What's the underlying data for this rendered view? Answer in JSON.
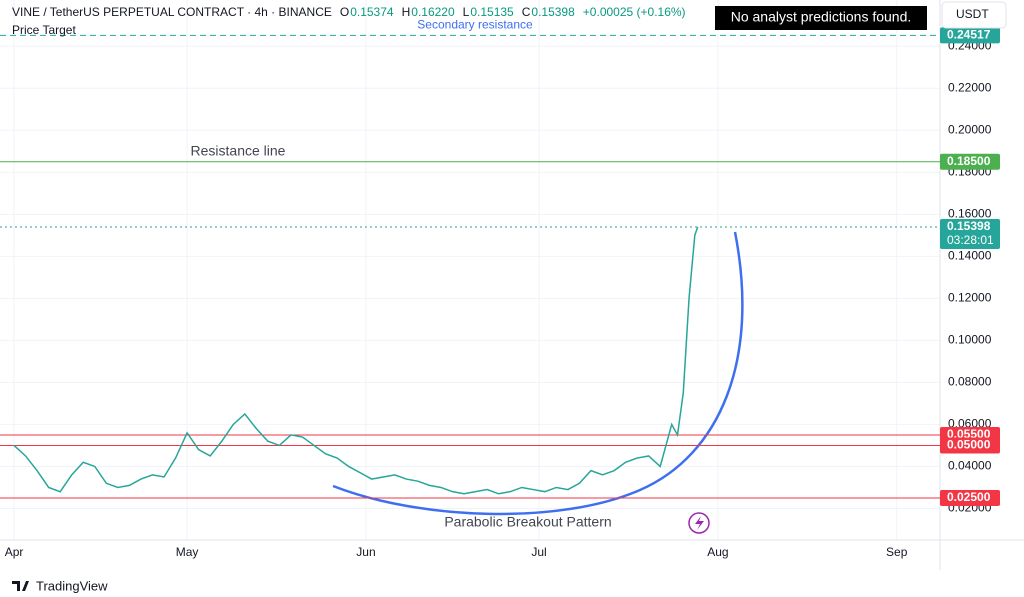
{
  "chart_data": {
    "type": "line",
    "header": {
      "symbol": "VINE / TetherUS PERPETUAL CONTRACT · 4h · BINANCE",
      "open": "0.15374",
      "high": "0.16220",
      "low": "0.15135",
      "close": "0.15398",
      "change": "+0.00025 (+0.16%)"
    },
    "price_target_label": "Price Target",
    "tooltip": "No analyst predictions found.",
    "currency": "USDT",
    "brand": "TradingView",
    "pattern_label": "Parabolic Breakout Pattern",
    "xlim": [
      -0.7,
      160.5
    ],
    "xticks": [
      {
        "value": 0,
        "label": "Apr"
      },
      {
        "value": 30,
        "label": "May"
      },
      {
        "value": 61,
        "label": "Jun"
      },
      {
        "value": 91,
        "label": "Jul"
      },
      {
        "value": 122,
        "label": "Aug"
      },
      {
        "value": 153,
        "label": "Sep"
      }
    ],
    "ylim": [
      0.005,
      0.262
    ],
    "yticks": [
      {
        "value": 0.02,
        "label": "0.02000"
      },
      {
        "value": 0.04,
        "label": "0.04000"
      },
      {
        "value": 0.06,
        "label": "0.06000"
      },
      {
        "value": 0.08,
        "label": "0.08000"
      },
      {
        "value": 0.1,
        "label": "0.10000"
      },
      {
        "value": 0.12,
        "label": "0.12000"
      },
      {
        "value": 0.14,
        "label": "0.14000"
      },
      {
        "value": 0.16,
        "label": "0.16000"
      },
      {
        "value": 0.18,
        "label": "0.18000"
      },
      {
        "value": 0.2,
        "label": "0.20000"
      },
      {
        "value": 0.22,
        "label": "0.22000"
      },
      {
        "value": 0.24,
        "label": "0.24000"
      }
    ],
    "grid": true,
    "series": [
      {
        "color": "#26a69a",
        "x": [
          0,
          2,
          4,
          6,
          8,
          10,
          12,
          14,
          16,
          18,
          20,
          22,
          24,
          26,
          28,
          30,
          32,
          34,
          36,
          38,
          40,
          42,
          44,
          46,
          48,
          50,
          52,
          54,
          56,
          58,
          60,
          62,
          64,
          66,
          68,
          70,
          72,
          74,
          76,
          78,
          80,
          82,
          84,
          86,
          88,
          90,
          92,
          94,
          96,
          98,
          100,
          102,
          104,
          106,
          108,
          110,
          112,
          114,
          115,
          116,
          117,
          118,
          118.5
        ],
        "values": [
          0.05,
          0.045,
          0.038,
          0.03,
          0.028,
          0.036,
          0.042,
          0.04,
          0.032,
          0.03,
          0.031,
          0.034,
          0.036,
          0.035,
          0.044,
          0.056,
          0.048,
          0.045,
          0.052,
          0.06,
          0.065,
          0.058,
          0.052,
          0.05,
          0.055,
          0.054,
          0.05,
          0.046,
          0.044,
          0.04,
          0.037,
          0.034,
          0.035,
          0.036,
          0.034,
          0.033,
          0.031,
          0.03,
          0.028,
          0.027,
          0.028,
          0.029,
          0.027,
          0.028,
          0.03,
          0.029,
          0.028,
          0.03,
          0.029,
          0.032,
          0.038,
          0.036,
          0.038,
          0.042,
          0.044,
          0.045,
          0.04,
          0.06,
          0.055,
          0.075,
          0.12,
          0.15,
          0.154
        ]
      }
    ],
    "levels": [
      {
        "name": "Secondary resistance",
        "value": 0.24517,
        "label": "0.24517",
        "color": "#26a69a",
        "style": "dashed"
      },
      {
        "name": "Resistance line",
        "value": 0.185,
        "label": "0.18500",
        "color": "#4caf50",
        "style": "solid"
      },
      {
        "value": 0.15398,
        "label": "0.15398",
        "sublabel": "03:28:01",
        "color": "#26a69a",
        "style": "dotted"
      },
      {
        "value": 0.055,
        "label": "0.05500",
        "color": "#f23645",
        "style": "solid"
      },
      {
        "value": 0.05,
        "label": "0.05000",
        "color": "#f23645",
        "style": "solid"
      },
      {
        "value": 0.025,
        "label": "0.02500",
        "color": "#f23645",
        "style": "solid"
      }
    ]
  }
}
